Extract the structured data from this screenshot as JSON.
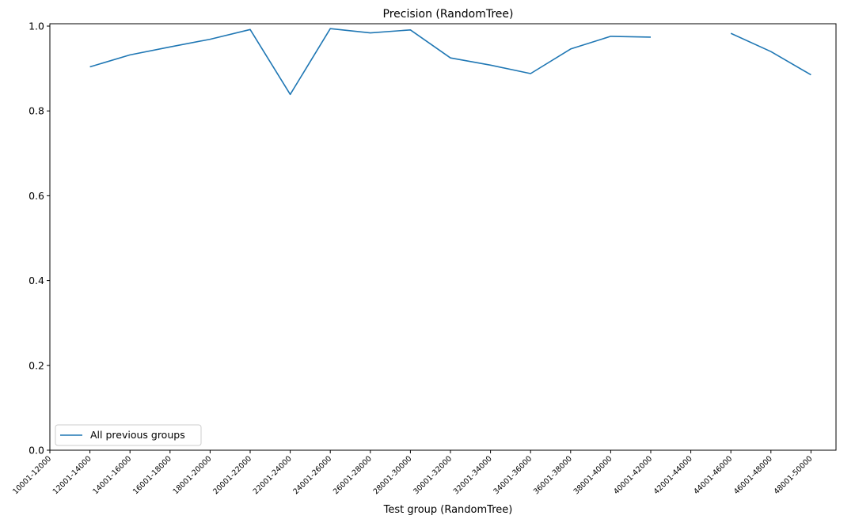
{
  "chart_data": {
    "type": "line",
    "title": "Precision (RandomTree)",
    "xlabel": "Test group (RandomTree)",
    "ylabel": "",
    "categories": [
      "10001-12000",
      "12001-14000",
      "14001-16000",
      "16001-18000",
      "18001-20000",
      "20001-22000",
      "22001-24000",
      "24001-26000",
      "26001-28000",
      "28001-30000",
      "30001-32000",
      "32001-34000",
      "34001-36000",
      "36001-38000",
      "38001-40000",
      "40001-42000",
      "42001-44000",
      "44001-46000",
      "46001-48000",
      "48001-50000"
    ],
    "yticks": [
      "0.0",
      "0.2",
      "0.4",
      "0.6",
      "0.8",
      "1.0"
    ],
    "ylim": [
      0.0,
      1.0
    ],
    "grid": false,
    "legend_position": "lower-left",
    "series": [
      {
        "name": "All previous groups",
        "color": "#1f77b4",
        "values": [
          null,
          0.904,
          0.932,
          0.951,
          0.969,
          0.992,
          0.839,
          0.994,
          0.984,
          0.991,
          0.925,
          0.908,
          0.888,
          0.946,
          0.976,
          0.974,
          null,
          0.983,
          0.94,
          0.885
        ]
      }
    ]
  }
}
